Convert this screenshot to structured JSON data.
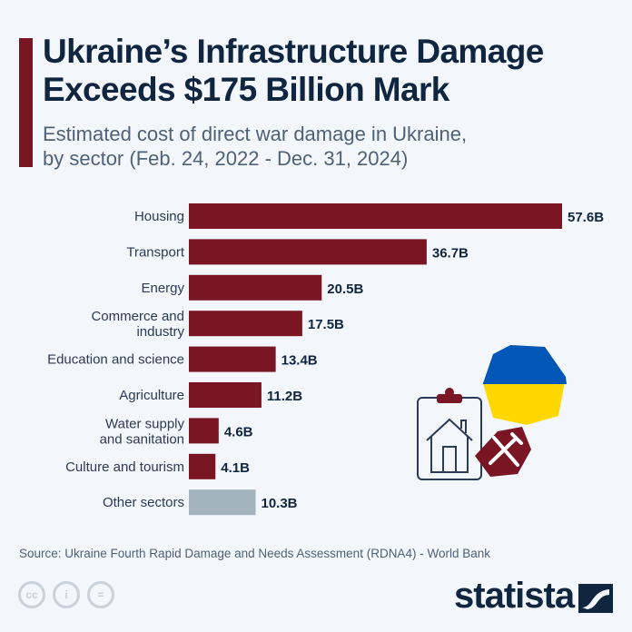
{
  "header": {
    "title_line1": "Ukraine’s Infrastructure Damage",
    "title_line2": "Exceeds $175 Billion Mark",
    "subtitle_line1": "Estimated cost of direct war damage in Ukraine,",
    "subtitle_line2": "by sector (Feb. 24, 2022 - Dec. 31, 2024)"
  },
  "chart_data": {
    "type": "bar",
    "orientation": "horizontal",
    "title": "",
    "xlabel": "",
    "ylabel": "",
    "grid": false,
    "unit": "billion USD",
    "categories": [
      [
        "Housing"
      ],
      [
        "Transport"
      ],
      [
        "Energy"
      ],
      [
        "Commerce and",
        "industry"
      ],
      [
        "Education and science"
      ],
      [
        "Agriculture"
      ],
      [
        "Water supply",
        "and sanitation"
      ],
      [
        "Culture and tourism"
      ],
      [
        "Other sectors"
      ]
    ],
    "values": [
      57.6,
      36.7,
      20.5,
      17.5,
      13.4,
      11.2,
      4.6,
      4.1,
      10.3
    ],
    "labels": [
      "57.6B",
      "36.7B",
      "20.5B",
      "17.5B",
      "13.4B",
      "11.2B",
      "4.6B",
      "4.1B",
      "10.3B"
    ],
    "colors": {
      "primary": "#7a1523",
      "other": "#a3b4bf"
    }
  },
  "footer": {
    "source": "Source: Ukraine Fourth Rapid Damage and Needs Assessment (RDNA4) - World Bank",
    "logo": "statista",
    "cc_icons": [
      "cc",
      "by",
      "nd"
    ]
  },
  "colors": {
    "title": "#0f2540",
    "flag_blue": "#0057b8",
    "flag_yellow": "#ffd700"
  }
}
